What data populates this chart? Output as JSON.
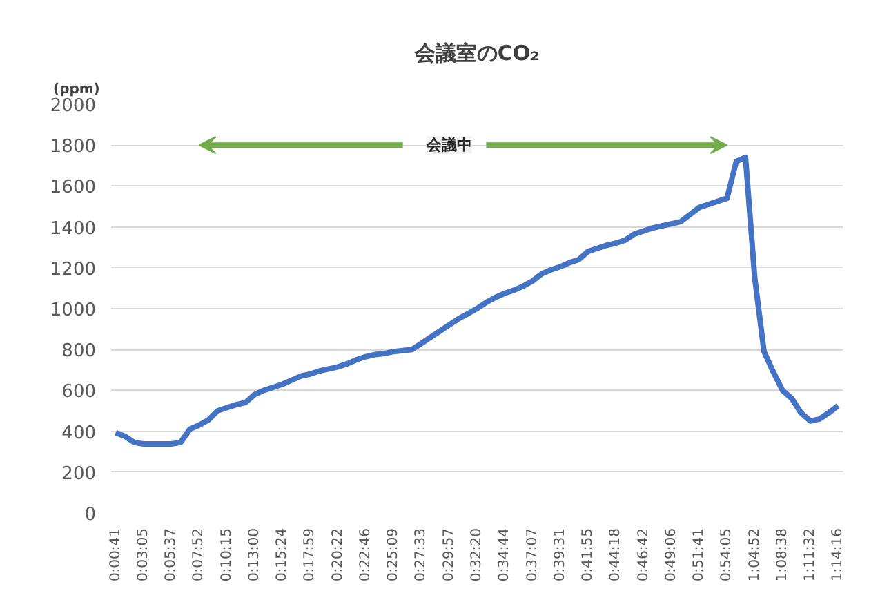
{
  "chart_data": {
    "type": "line",
    "title": "会議室のCO₂",
    "ylabel": "(ppm)",
    "categories": [
      "0:00:41",
      null,
      null,
      "0:03:05",
      null,
      null,
      "0:05:37",
      null,
      null,
      "0:07:52",
      null,
      null,
      "0:10:15",
      null,
      null,
      "0:13:00",
      null,
      null,
      "0:15:24",
      null,
      null,
      "0:17:59",
      null,
      null,
      "0:20:22",
      null,
      null,
      "0:22:46",
      null,
      null,
      "0:25:09",
      null,
      null,
      "0:27:33",
      null,
      null,
      "0:29:57",
      null,
      null,
      "0:32:20",
      null,
      null,
      "0:34:44",
      null,
      null,
      "0:37:07",
      null,
      null,
      "0:39:31",
      null,
      null,
      "0:41:55",
      null,
      null,
      "0:44:18",
      null,
      null,
      "0:46:42",
      null,
      null,
      "0:49:06",
      null,
      null,
      "0:51:41",
      null,
      null,
      "0:54:05",
      null,
      null,
      "1:04:52",
      null,
      null,
      "1:08:38",
      null,
      null,
      "1:11:32",
      null,
      null,
      "1:14:16"
    ],
    "series": [
      {
        "color": "#4472c4",
        "values": [
          393,
          375,
          345,
          338,
          338,
          338,
          338,
          345,
          410,
          430,
          455,
          500,
          515,
          530,
          540,
          580,
          600,
          615,
          630,
          650,
          670,
          680,
          695,
          705,
          715,
          730,
          750,
          765,
          775,
          780,
          790,
          795,
          800,
          830,
          860,
          890,
          920,
          950,
          975,
          1000,
          1030,
          1055,
          1075,
          1090,
          1110,
          1135,
          1170,
          1190,
          1205,
          1225,
          1240,
          1280,
          1295,
          1310,
          1320,
          1335,
          1365,
          1380,
          1395,
          1405,
          1415,
          1425,
          1460,
          1495,
          1510,
          1525,
          1540,
          1720,
          1740,
          1150,
          790,
          690,
          600,
          560,
          490,
          450,
          460,
          490,
          525
        ]
      }
    ],
    "ylim": [
      0,
      2000
    ],
    "yticks": [
      0,
      200,
      400,
      600,
      800,
      1000,
      1200,
      1400,
      1600,
      1800,
      2000
    ],
    "grid": "y",
    "marker": "none",
    "line_style": "solid",
    "annotations": [
      {
        "text": "会議中",
        "x": "0:29:57",
        "y": 1800
      }
    ]
  }
}
